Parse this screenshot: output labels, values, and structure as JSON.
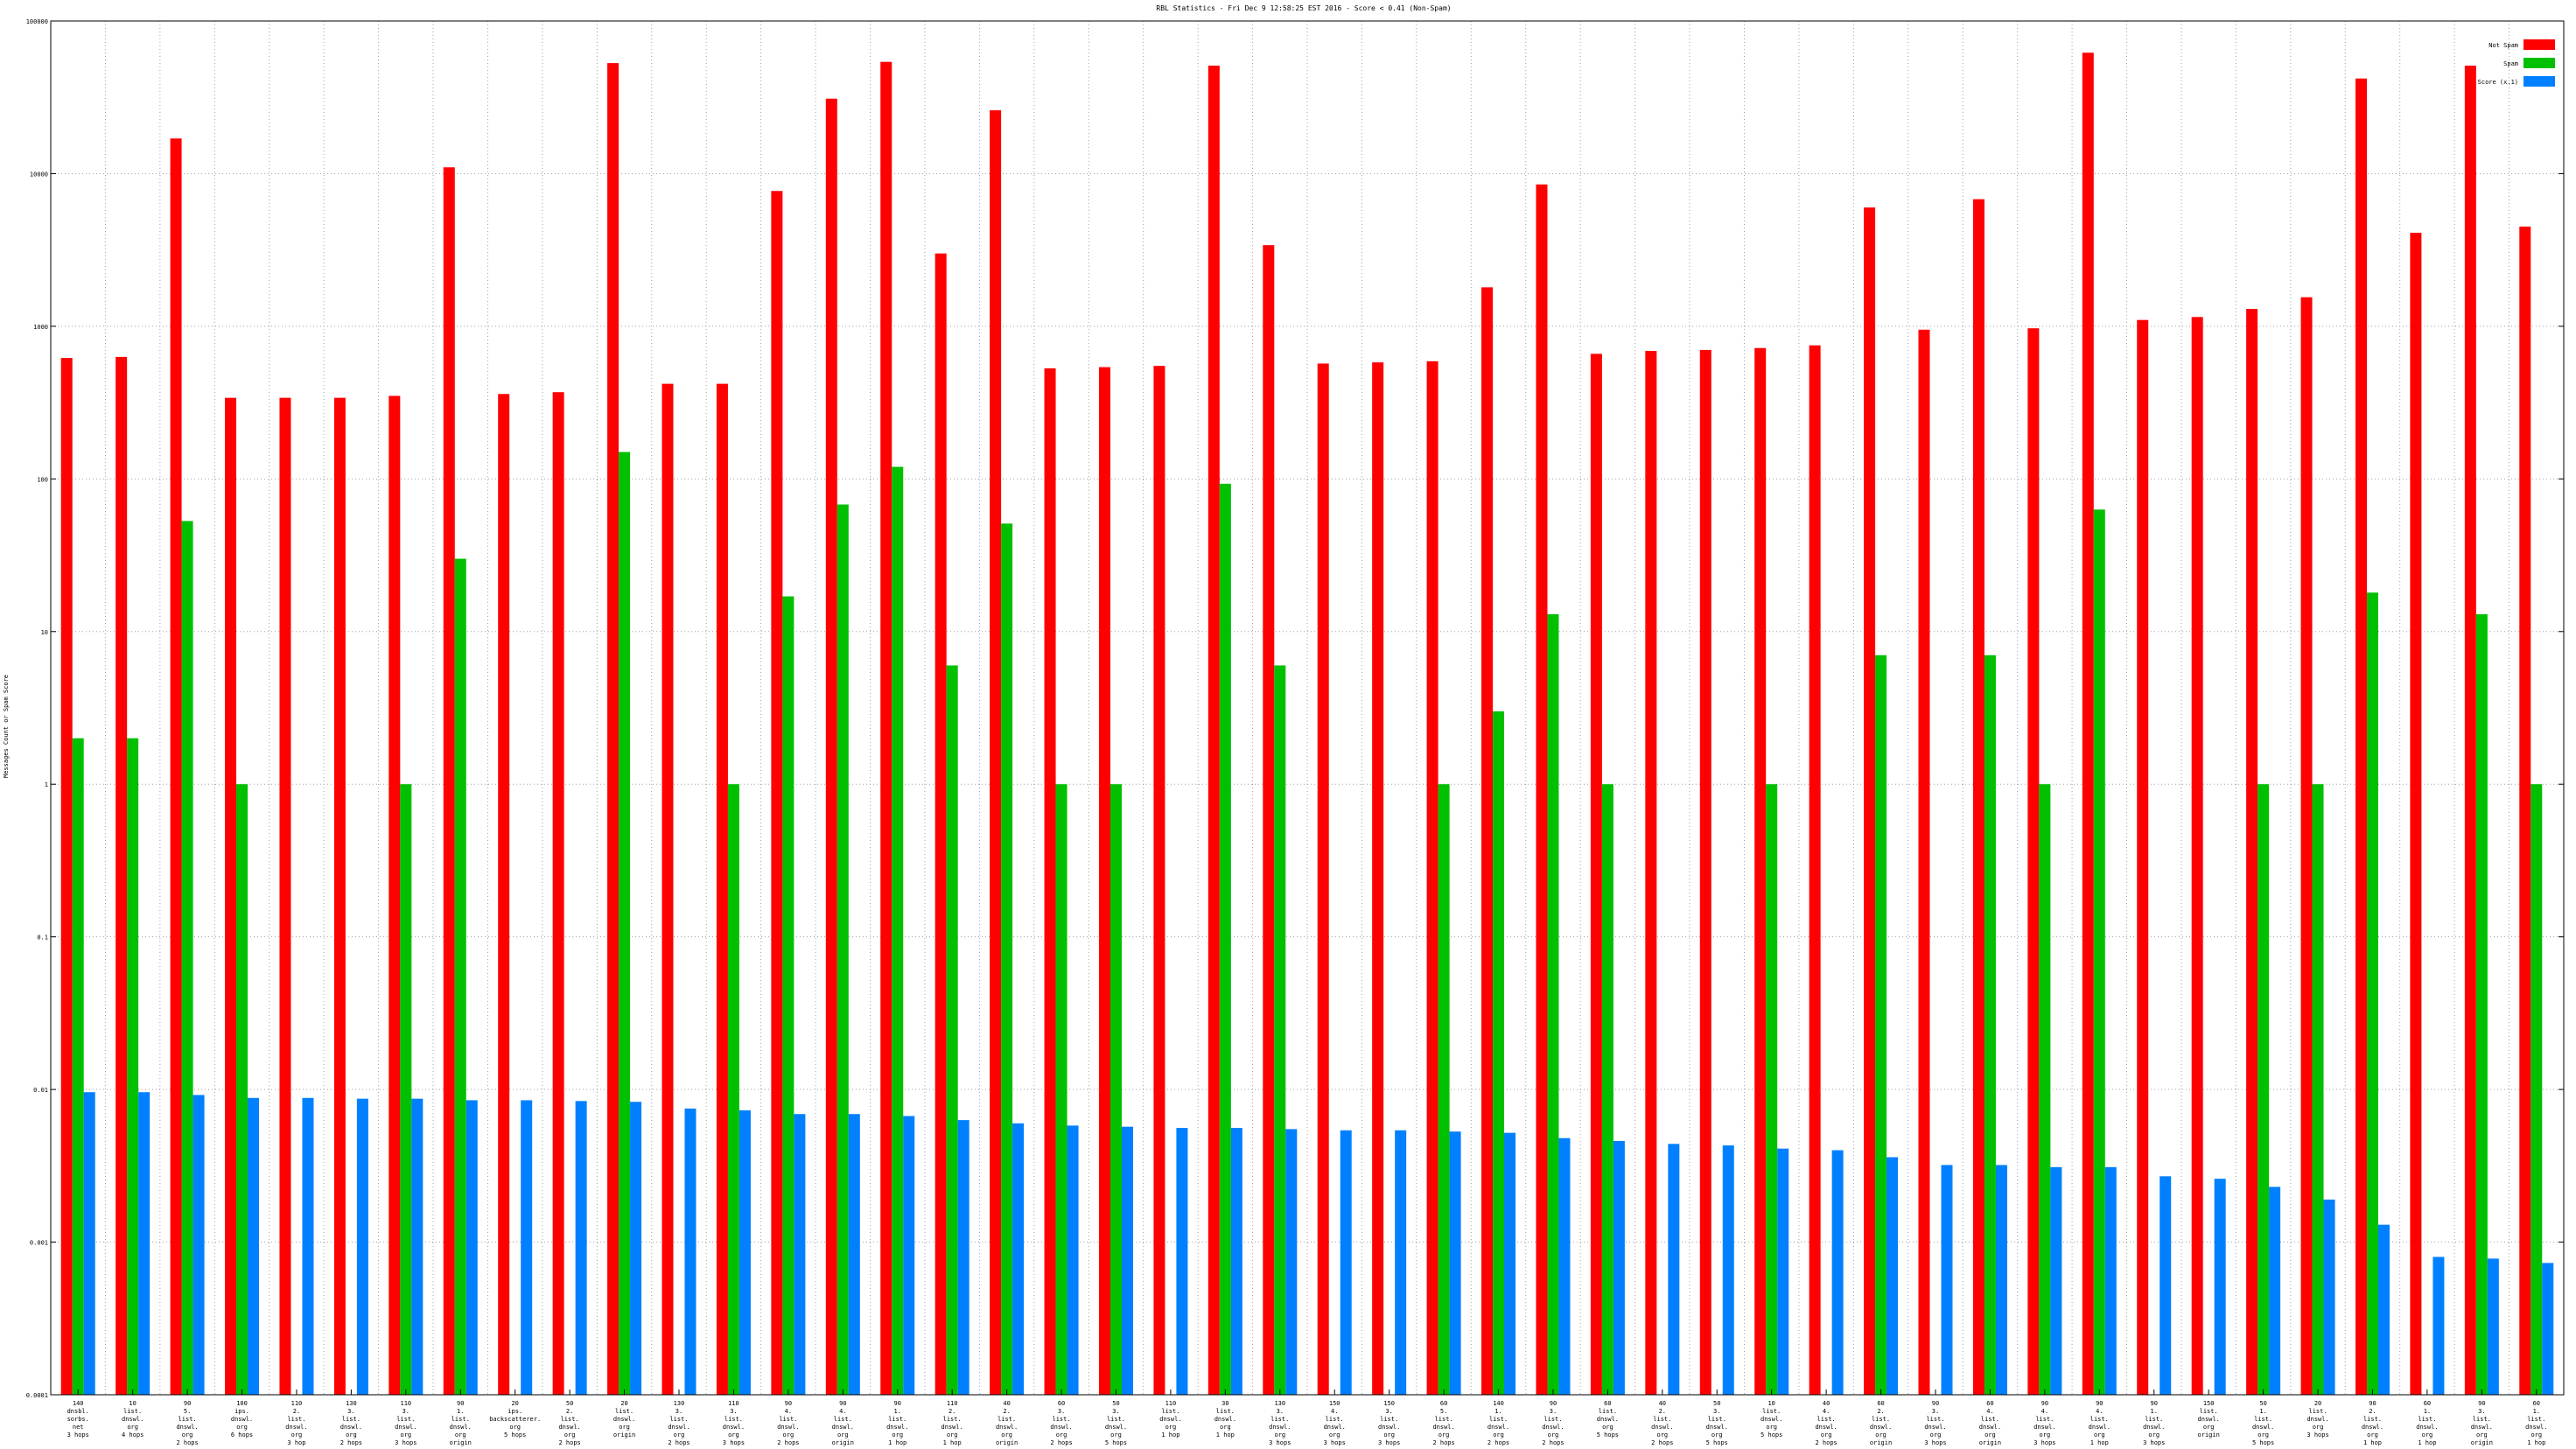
{
  "chart_data": {
    "type": "bar",
    "title": "RBL Statistics - Fri Dec  9 12:58:25 EST 2016 - Score < 0.41 (Non-Spam)",
    "ylabel": "Messages Count or Spam Score",
    "xlabel": "",
    "yscale": "log",
    "ylim": [
      0.0001,
      100000
    ],
    "ytick_values": [
      0.0001,
      0.001,
      0.01,
      0.1,
      1,
      10,
      100,
      1000,
      10000,
      100000
    ],
    "ytick_labels": [
      "0.0001",
      "0.001",
      "0.01",
      "0.1",
      "1",
      "10",
      "100",
      "1000",
      "10000",
      "100000"
    ],
    "grid": true,
    "legend_position": "top-right",
    "categories": [
      "140 dnsbl. sorbs. net 3 hops",
      "10 list. dnswl. org 4 hops",
      "90 5. list. dnswl. org 2 hops",
      "100 ips. dnswl. org 6 hops",
      "110 2. list. dnswl. org 3 hop",
      "130 3. list. dnswl. org 2 hops",
      "110 3. list. dnswl. org 3 hops",
      "90 1. list. dnswl. org origin",
      "20 ips. backscatterer. org 5 hops",
      "50 2. list. dnswl. org 2 hops",
      "20 list. dnswl. org origin",
      "130 3. list. dnswl. org 2 hops",
      "110 3. list. dnswl. org 3 hops",
      "90 4. list. dnswl. org 2 hops",
      "90 4. list. dnswl. org origin",
      "90 1. list. dnswl. org 1 hop",
      "110 2. list. dnswl. org 1 hop",
      "40 2. list. dnswl. org origin",
      "60 3. list. dnswl. org 2 hops",
      "50 3. list. dnswl. org 5 hops",
      "110 list. dnswl. org 1 hop",
      "30 list. dnswl. org 1 hop",
      "130 3. list. dnswl. org 3 hops",
      "150 4. list. dnswl. org 3 hops",
      "150 3. list. dnswl. org 3 hops",
      "60 5. list. dnswl. org 2 hops",
      "140 1. list. dnswl. org 2 hops",
      "90 3. list. dnswl. org 2 hops",
      "60 list. dnswl. org 5 hops",
      "40 2. list. dnswl. org 2 hops",
      "50 3. list. dnswl. org 5 hops",
      "10 list. dnswl. org 5 hops",
      "40 4. list. dnswl. org 2 hops",
      "60 2. list. dnswl. org origin",
      "90 3. list. dnswl. org 3 hops",
      "60 4. list. dnswl. org origin",
      "90 4. list. dnswl. org 3 hops",
      "90 4. list. dnswl. org 1 hop",
      "90 1. list. dnswl. org 3 hops",
      "150 list. dnswl. org origin",
      "50 1. list. dnswl. org 5 hops",
      "20 list. dnswl. org 3 hops",
      "90 2. list. dnswl. org 1 hop",
      "60 1. list. dnswl. org 1 hop",
      "90 3. list. dnswl. org origin",
      "60 1. list. dnswl. org 1 hop"
    ],
    "series": [
      {
        "name": "Not Spam",
        "color": "#ff0000",
        "values": [
          620,
          630,
          17000,
          340,
          340,
          340,
          350,
          11000,
          360,
          370,
          53000,
          420,
          420,
          7700,
          31000,
          54000,
          3000,
          26000,
          530,
          540,
          550,
          51000,
          3400,
          570,
          580,
          590,
          1800,
          8500,
          660,
          690,
          700,
          720,
          750,
          6000,
          950,
          6800,
          970,
          62000,
          1100,
          1150,
          1300,
          1550,
          42000,
          4100,
          51000,
          4500
        ]
      },
      {
        "name": "Spam",
        "color": "#00c000",
        "values": [
          2,
          2,
          53,
          1,
          null,
          null,
          1,
          30,
          null,
          null,
          150,
          null,
          1,
          17,
          68,
          120,
          6,
          51,
          1,
          1,
          null,
          93,
          6,
          null,
          null,
          1,
          3,
          13,
          1,
          null,
          null,
          1,
          null,
          7,
          null,
          7,
          1,
          63,
          null,
          null,
          1,
          1,
          18,
          null,
          13,
          1
        ]
      },
      {
        "name": "Score (x.1)",
        "color": "#0080ff",
        "values": [
          0.0096,
          0.0096,
          0.0092,
          0.0088,
          0.0088,
          0.0087,
          0.0087,
          0.0085,
          0.0085,
          0.0084,
          0.0083,
          0.0075,
          0.0073,
          0.0069,
          0.0069,
          0.0067,
          0.0063,
          0.006,
          0.0058,
          0.0057,
          0.0056,
          0.0056,
          0.0055,
          0.0054,
          0.0054,
          0.0053,
          0.0052,
          0.0048,
          0.0046,
          0.0044,
          0.0043,
          0.0041,
          0.004,
          0.0036,
          0.0032,
          0.0032,
          0.0031,
          0.0031,
          0.0027,
          0.0026,
          0.0023,
          0.0019,
          0.0013,
          0.0008,
          0.00078,
          0.00073
        ]
      }
    ]
  }
}
